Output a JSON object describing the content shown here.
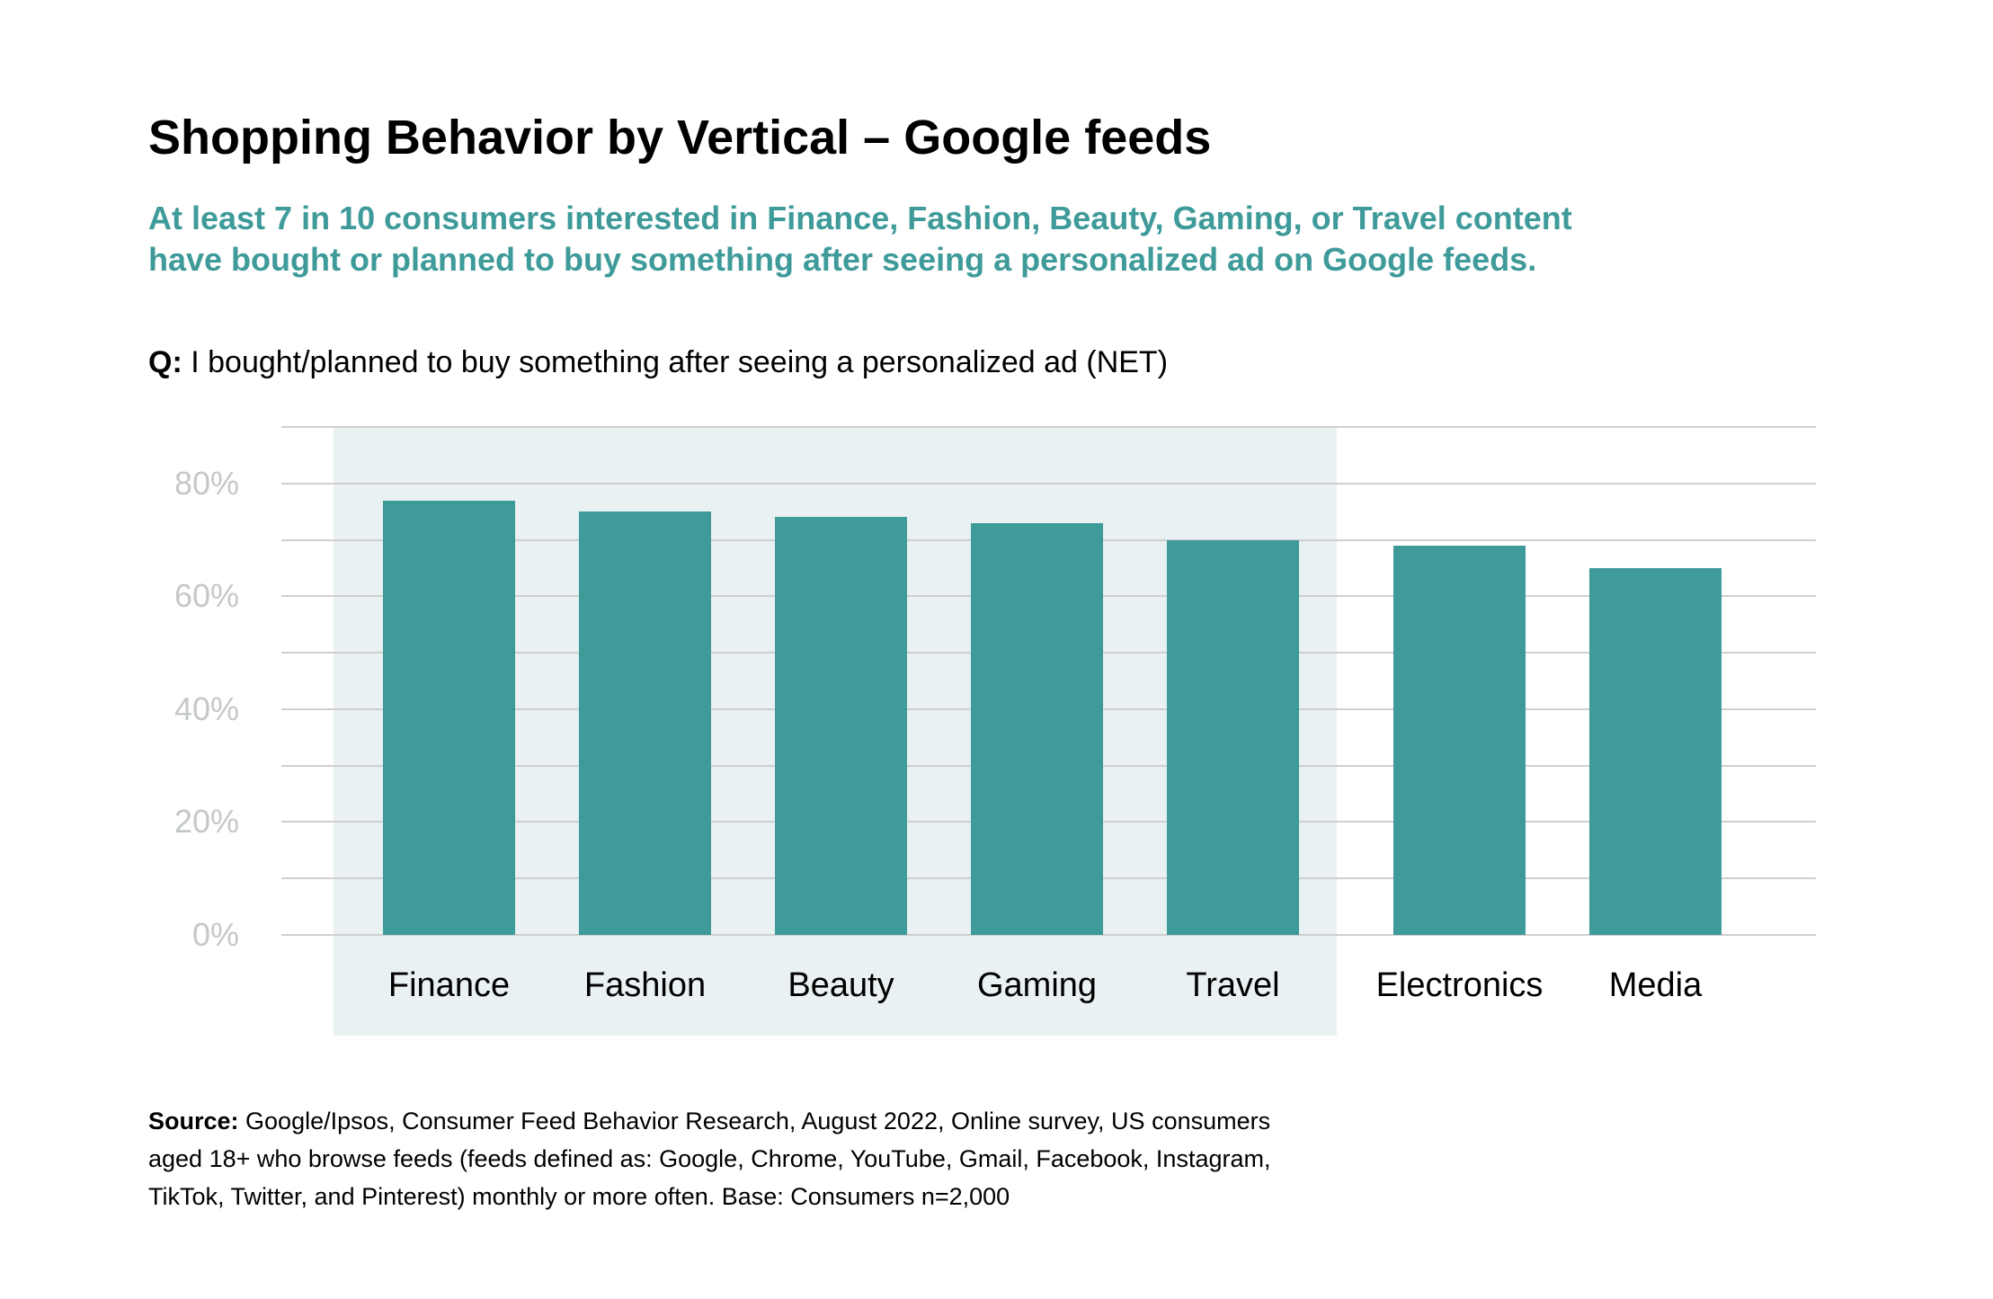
{
  "title": "Shopping Behavior by Vertical – Google feeds",
  "subtitle": {
    "line1": "At least 7 in 10 consumers interested in Finance, Fashion, Beauty, Gaming, or Travel content",
    "line2": "have bought or planned to buy something after seeing a personalized ad on Google feeds."
  },
  "question": {
    "label": "Q:",
    "text": " I bought/planned to buy something after seeing a personalized ad (NET)"
  },
  "chart_data": {
    "type": "bar",
    "categories": [
      "Finance",
      "Fashion",
      "Beauty",
      "Gaming",
      "Travel",
      "Electronics",
      "Media"
    ],
    "values": [
      77,
      75,
      74,
      73,
      70,
      69,
      65
    ],
    "highlighted_categories": [
      "Finance",
      "Fashion",
      "Beauty",
      "Gaming",
      "Travel"
    ],
    "y_ticks": [
      80,
      60,
      40,
      20,
      0
    ],
    "y_tick_labels": [
      "80%",
      "60%",
      "40%",
      "20%",
      "0%"
    ],
    "ylim": [
      0,
      90
    ],
    "gridline_step": 10,
    "grid": true,
    "legend": false,
    "title": "",
    "xlabel": "",
    "ylabel": "",
    "bar_color": "#3F9A9A",
    "highlight_bg": "#E9F1F2",
    "gridline_color": "#CFCFCF",
    "tick_label_color": "#C5C8C9",
    "x_label_color": "#000000"
  },
  "colors": {
    "accent_teal": "#3F9A9A",
    "title_black": "#000000",
    "background": "#FFFFFF"
  },
  "footer": {
    "label": "Source:",
    "line1": " Google/Ipsos, Consumer Feed Behavior Research, August 2022, Online survey, US consumers",
    "line2": "aged 18+ who browse feeds (feeds defined as: Google, Chrome, YouTube, Gmail, Facebook, Instagram,",
    "line3": "TikTok, Twitter, and Pinterest) monthly or more often. Base: Consumers n=2,000"
  }
}
